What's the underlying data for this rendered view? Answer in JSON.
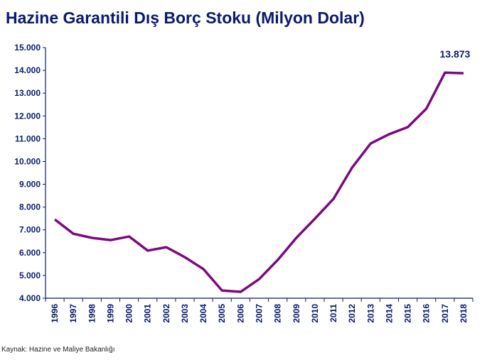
{
  "chart_data": {
    "type": "line",
    "title": "Hazine Garantili Dış Borç Stoku (Milyon Dolar)",
    "x": [
      "1996",
      "1997",
      "1998",
      "1999",
      "2000",
      "2001",
      "2002",
      "2003",
      "2004",
      "2005",
      "2006",
      "2007",
      "2008",
      "2009",
      "2010",
      "2011",
      "2012",
      "2013",
      "2014",
      "2015",
      "2016",
      "2017",
      "2018"
    ],
    "series": [
      {
        "values": [
          7460,
          6830,
          6650,
          6550,
          6710,
          6090,
          6240,
          5800,
          5280,
          4340,
          4280,
          4840,
          5680,
          6650,
          7490,
          8360,
          9730,
          10790,
          11200,
          11510,
          12320,
          13900,
          13873
        ]
      }
    ],
    "ylim": [
      4000,
      15000
    ],
    "yticks": [
      "4.000",
      "5.000",
      "6.000",
      "7.000",
      "8.000",
      "9.000",
      "10.000",
      "11.000",
      "12.000",
      "13.000",
      "14.000",
      "15.000"
    ],
    "annotation": "13.873",
    "line_color": "#7a0a7e",
    "axis_color": "#0a1a6e",
    "grid": false
  },
  "source": "Kaynak: Hazine ve Maliye Bakanlığı"
}
